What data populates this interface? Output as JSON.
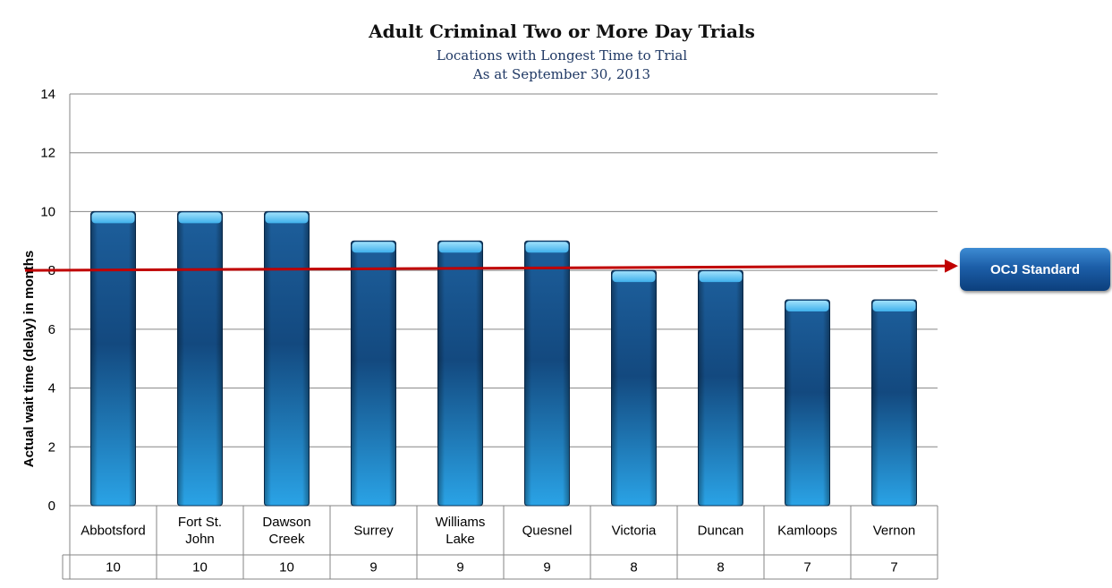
{
  "chart_data": {
    "type": "bar",
    "title": "Adult Criminal Two or More Day Trials",
    "subtitle_lines": [
      "Locations with Longest Time to Trial",
      "As at September 30, 2013"
    ],
    "ylabel": "Actual wait time (delay) in months",
    "xlabel": "",
    "ylim": [
      0,
      14
    ],
    "yticks": [
      "0",
      "2",
      "4",
      "6",
      "8",
      "10",
      "12",
      "14"
    ],
    "grid": true,
    "categories": [
      [
        "Abbotsford"
      ],
      [
        "Fort St.",
        "John"
      ],
      [
        "Dawson",
        "Creek"
      ],
      [
        "Surrey"
      ],
      [
        "Williams",
        "Lake"
      ],
      [
        "Quesnel"
      ],
      [
        "Victoria"
      ],
      [
        "Duncan"
      ],
      [
        "Kamloops"
      ],
      [
        "Vernon"
      ]
    ],
    "values": [
      10,
      10,
      10,
      9,
      9,
      9,
      8,
      8,
      7,
      7
    ],
    "data_table": true,
    "reference_line": {
      "value": 8,
      "label": "OCJ Standard"
    },
    "colors": {
      "bar_top": "#67c6f5",
      "bar_mid": "#1a5d99",
      "bar_bottom": "#2a9ee0",
      "reference_line": "#c00000",
      "label_box": "#1c5ea8"
    }
  }
}
